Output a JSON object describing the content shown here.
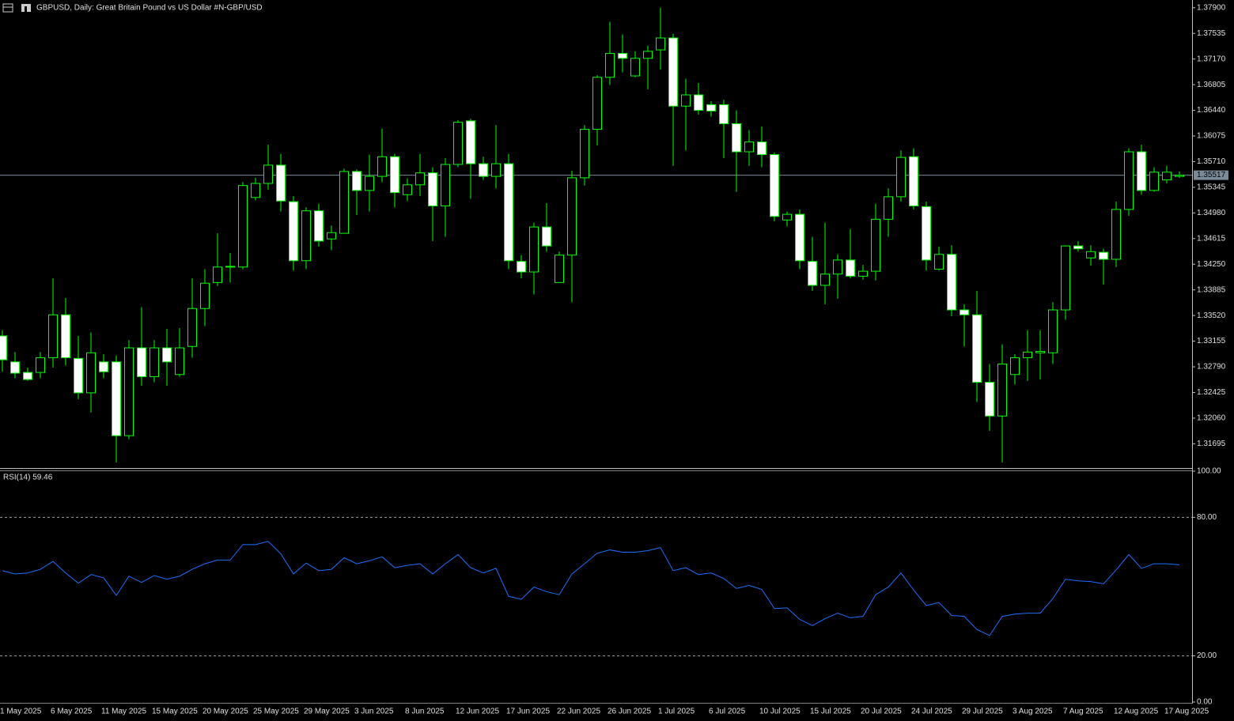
{
  "chart_data": [
    {
      "type": "candlestick",
      "title": "GBPUSD, Daily:  Great Britain Pound vs US Dollar #N-GBP/USD",
      "categories": [
        "1 May 2025",
        null,
        null,
        null,
        "6 May 2025",
        null,
        null,
        null,
        "11 May 2025",
        null,
        null,
        null,
        "15 May 2025",
        null,
        null,
        null,
        "20 May 2025",
        null,
        null,
        null,
        "25 May 2025",
        null,
        null,
        null,
        "29 May 2025",
        null,
        null,
        null,
        "3 Jun 2025",
        null,
        null,
        null,
        "8 Jun 2025",
        null,
        null,
        null,
        "12 Jun 2025",
        null,
        null,
        null,
        "17 Jun 2025",
        null,
        null,
        null,
        "22 Jun 2025",
        null,
        null,
        null,
        "26 Jun 2025",
        null,
        null,
        null,
        "1 Jul 2025",
        null,
        null,
        null,
        "6 Jul 2025",
        null,
        null,
        null,
        "10 Jul 2025",
        null,
        null,
        null,
        "15 Jul 2025",
        null,
        null,
        null,
        "20 Jul 2025",
        null,
        null,
        null,
        "24 Jul 2025",
        null,
        null,
        null,
        "29 Jul 2025",
        null,
        null,
        null,
        "3 Aug 2025",
        null,
        null,
        null,
        "7 Aug 2025",
        null,
        null,
        null,
        "12 Aug 2025",
        null,
        null,
        null,
        "17 Aug 2025",
        null
      ],
      "open": [
        1.3323,
        1.3286,
        1.3271,
        1.3271,
        1.3292,
        1.3353,
        1.3291,
        1.3242,
        1.3286,
        1.3286,
        1.3181,
        1.3306,
        1.3265,
        1.3306,
        1.3268,
        1.3308,
        1.3362,
        1.3399,
        1.3421,
        1.3421,
        1.352,
        1.354,
        1.3566,
        1.3514,
        1.343,
        1.3501,
        1.3461,
        1.3469,
        1.3557,
        1.353,
        1.355,
        1.3578,
        1.3524,
        1.3538,
        1.3555,
        1.3508,
        1.3567,
        1.3629,
        1.3568,
        1.355,
        1.3568,
        1.3429,
        1.3414,
        1.3478,
        1.3399,
        1.3438,
        1.3548,
        1.3617,
        1.3691,
        1.3725,
        1.3693,
        1.3718,
        1.373,
        1.3747,
        1.365,
        1.3666,
        1.3652,
        1.3652,
        1.3625,
        1.3585,
        1.3599,
        1.3581,
        1.3488,
        1.3496,
        1.3429,
        1.3395,
        1.3411,
        1.3431,
        1.3408,
        1.3415,
        1.3489,
        1.3521,
        1.3578,
        1.3507,
        1.3418,
        1.3439,
        1.336,
        1.3353,
        1.3257,
        1.3209,
        1.3268,
        1.3292,
        1.3299,
        1.3299,
        1.336,
        1.3451,
        1.3434,
        1.3442,
        1.3432,
        1.3503,
        1.3585,
        1.353,
        1.3545,
        1.355
      ],
      "high": [
        1.3331,
        1.33,
        1.3278,
        1.33,
        1.3405,
        1.3377,
        1.3323,
        1.3328,
        1.3297,
        1.3295,
        1.3317,
        1.3364,
        1.3317,
        1.3333,
        1.3334,
        1.3405,
        1.3418,
        1.3469,
        1.3441,
        1.3542,
        1.3548,
        1.3595,
        1.3582,
        1.3522,
        1.3506,
        1.3511,
        1.348,
        1.3561,
        1.356,
        1.3581,
        1.3618,
        1.3582,
        1.3547,
        1.3582,
        1.3563,
        1.3576,
        1.363,
        1.3632,
        1.3578,
        1.3623,
        1.3582,
        1.3438,
        1.3484,
        1.3512,
        1.3443,
        1.3558,
        1.3623,
        1.3694,
        1.377,
        1.3752,
        1.3728,
        1.3736,
        1.379,
        1.3753,
        1.3689,
        1.3683,
        1.3657,
        1.3659,
        1.3644,
        1.3616,
        1.3621,
        1.3584,
        1.35,
        1.3503,
        1.3464,
        1.3484,
        1.3439,
        1.3475,
        1.3424,
        1.3511,
        1.3533,
        1.3587,
        1.359,
        1.3514,
        1.345,
        1.3452,
        1.3368,
        1.3387,
        1.3283,
        1.3311,
        1.3297,
        1.3331,
        1.3331,
        1.3371,
        1.3452,
        1.3458,
        1.3452,
        1.3447,
        1.3514,
        1.359,
        1.3595,
        1.3563,
        1.3565,
        1.3557
      ],
      "low": [
        1.3272,
        1.3263,
        1.3259,
        1.3263,
        1.3278,
        1.3281,
        1.3233,
        1.3214,
        1.3263,
        1.3143,
        1.3176,
        1.3252,
        1.3257,
        1.3252,
        1.3265,
        1.3292,
        1.3337,
        1.3394,
        1.3399,
        1.3418,
        1.3516,
        1.3531,
        1.35,
        1.3416,
        1.3418,
        1.345,
        1.3445,
        1.3469,
        1.3495,
        1.35,
        1.3542,
        1.3506,
        1.3515,
        1.3522,
        1.3458,
        1.3464,
        1.3563,
        1.3518,
        1.3545,
        1.3533,
        1.3418,
        1.3405,
        1.3382,
        1.3443,
        1.3399,
        1.3371,
        1.3537,
        1.3594,
        1.368,
        1.3698,
        1.3691,
        1.3674,
        1.3702,
        1.3565,
        1.3587,
        1.3638,
        1.3635,
        1.3576,
        1.3528,
        1.3565,
        1.3563,
        1.3486,
        1.3479,
        1.3418,
        1.3387,
        1.3368,
        1.3376,
        1.3405,
        1.3403,
        1.3402,
        1.3464,
        1.3514,
        1.3503,
        1.3416,
        1.3416,
        1.3351,
        1.3308,
        1.3229,
        1.3188,
        1.3143,
        1.3254,
        1.3259,
        1.3261,
        1.3283,
        1.3346,
        1.3443,
        1.3423,
        1.3396,
        1.3421,
        1.3494,
        1.3524,
        1.3528,
        1.354,
        1.3548
      ],
      "close": [
        1.3289,
        1.327,
        1.3261,
        1.3292,
        1.3353,
        1.3292,
        1.3242,
        1.3299,
        1.3272,
        1.3181,
        1.3306,
        1.3265,
        1.3306,
        1.3286,
        1.3306,
        1.3362,
        1.3398,
        1.3421,
        1.3422,
        1.3537,
        1.354,
        1.3566,
        1.3515,
        1.343,
        1.3501,
        1.3458,
        1.347,
        1.3557,
        1.353,
        1.355,
        1.3578,
        1.3527,
        1.3538,
        1.3555,
        1.3508,
        1.3567,
        1.3627,
        1.3568,
        1.355,
        1.3568,
        1.343,
        1.3414,
        1.3478,
        1.3451,
        1.3438,
        1.3548,
        1.3617,
        1.3691,
        1.3725,
        1.3718,
        1.3718,
        1.3728,
        1.3747,
        1.365,
        1.3666,
        1.3644,
        1.3643,
        1.3625,
        1.3585,
        1.3599,
        1.3581,
        1.3493,
        1.3496,
        1.343,
        1.3395,
        1.3411,
        1.3431,
        1.3408,
        1.3415,
        1.3489,
        1.3521,
        1.3577,
        1.3508,
        1.3431,
        1.3439,
        1.336,
        1.3353,
        1.3257,
        1.3209,
        1.3283,
        1.3292,
        1.33,
        1.3301,
        1.336,
        1.3451,
        1.3447,
        1.3443,
        1.3432,
        1.3503,
        1.3585,
        1.353,
        1.3556,
        1.3556,
        1.35517
      ],
      "last_price": 1.35517,
      "up_color": "#00ff00",
      "up_fill": "#000000",
      "down_fill": "#ffffff",
      "ylim": [
        1.3135,
        1.3801
      ],
      "yticks": [
        {
          "value": 1.379,
          "label": "1.37900"
        },
        1.37535,
        {
          "value": 1.3717,
          "label": "1.37170"
        },
        1.36805,
        {
          "value": 1.3644,
          "label": "1.36440"
        },
        1.36075,
        {
          "value": 1.3571,
          "label": "1.35710"
        },
        1.35345,
        {
          "value": 1.3498,
          "label": "1.34980"
        },
        1.34615,
        {
          "value": 1.3425,
          "label": "1.34250"
        },
        1.33885,
        {
          "value": 1.3352,
          "label": "1.33520"
        },
        1.33155,
        {
          "value": 1.3279,
          "label": "1.32790"
        },
        1.32425,
        {
          "value": 1.3206,
          "label": "1.32060"
        },
        1.31695
      ]
    },
    {
      "type": "line",
      "title": "RSI(14) 59.46",
      "color": "#1e6fff",
      "values": [
        56.9,
        55.5,
        55.9,
        57.5,
        60.9,
        55.9,
        51.5,
        55.2,
        53.8,
        46.2,
        54.5,
        51.8,
        54.8,
        53.2,
        54.5,
        57.5,
        59.9,
        61.5,
        61.5,
        68.2,
        68.2,
        69.6,
        64.2,
        55.5,
        60.2,
        56.9,
        57.5,
        62.5,
        59.9,
        61.2,
        62.9,
        58.2,
        59.2,
        59.9,
        55.5,
        59.9,
        63.9,
        58.2,
        55.9,
        57.9,
        45.8,
        44.5,
        49.8,
        47.8,
        46.5,
        55.5,
        59.9,
        64.5,
        65.9,
        64.9,
        64.9,
        65.6,
        66.9,
        56.9,
        58.2,
        55.2,
        55.9,
        53.5,
        49.2,
        50.5,
        48.8,
        40.5,
        40.8,
        35.8,
        33.1,
        36.1,
        38.5,
        36.5,
        37.1,
        46.5,
        49.8,
        55.9,
        48.5,
        41.8,
        43.1,
        37.5,
        37.1,
        31.4,
        28.8,
        37.1,
        38.1,
        38.5,
        38.5,
        44.8,
        53.2,
        52.5,
        52.2,
        51.2,
        57.2,
        63.9,
        57.9,
        59.9,
        59.9,
        59.46
      ],
      "ylim": [
        0,
        100
      ],
      "yticks": [
        {
          "value": 100,
          "label": "100.00"
        },
        {
          "value": 80,
          "label": "80.00"
        },
        {
          "value": 20,
          "label": "20.00"
        },
        {
          "value": 0,
          "label": "0.00"
        }
      ],
      "levels": [
        80,
        20
      ]
    }
  ]
}
